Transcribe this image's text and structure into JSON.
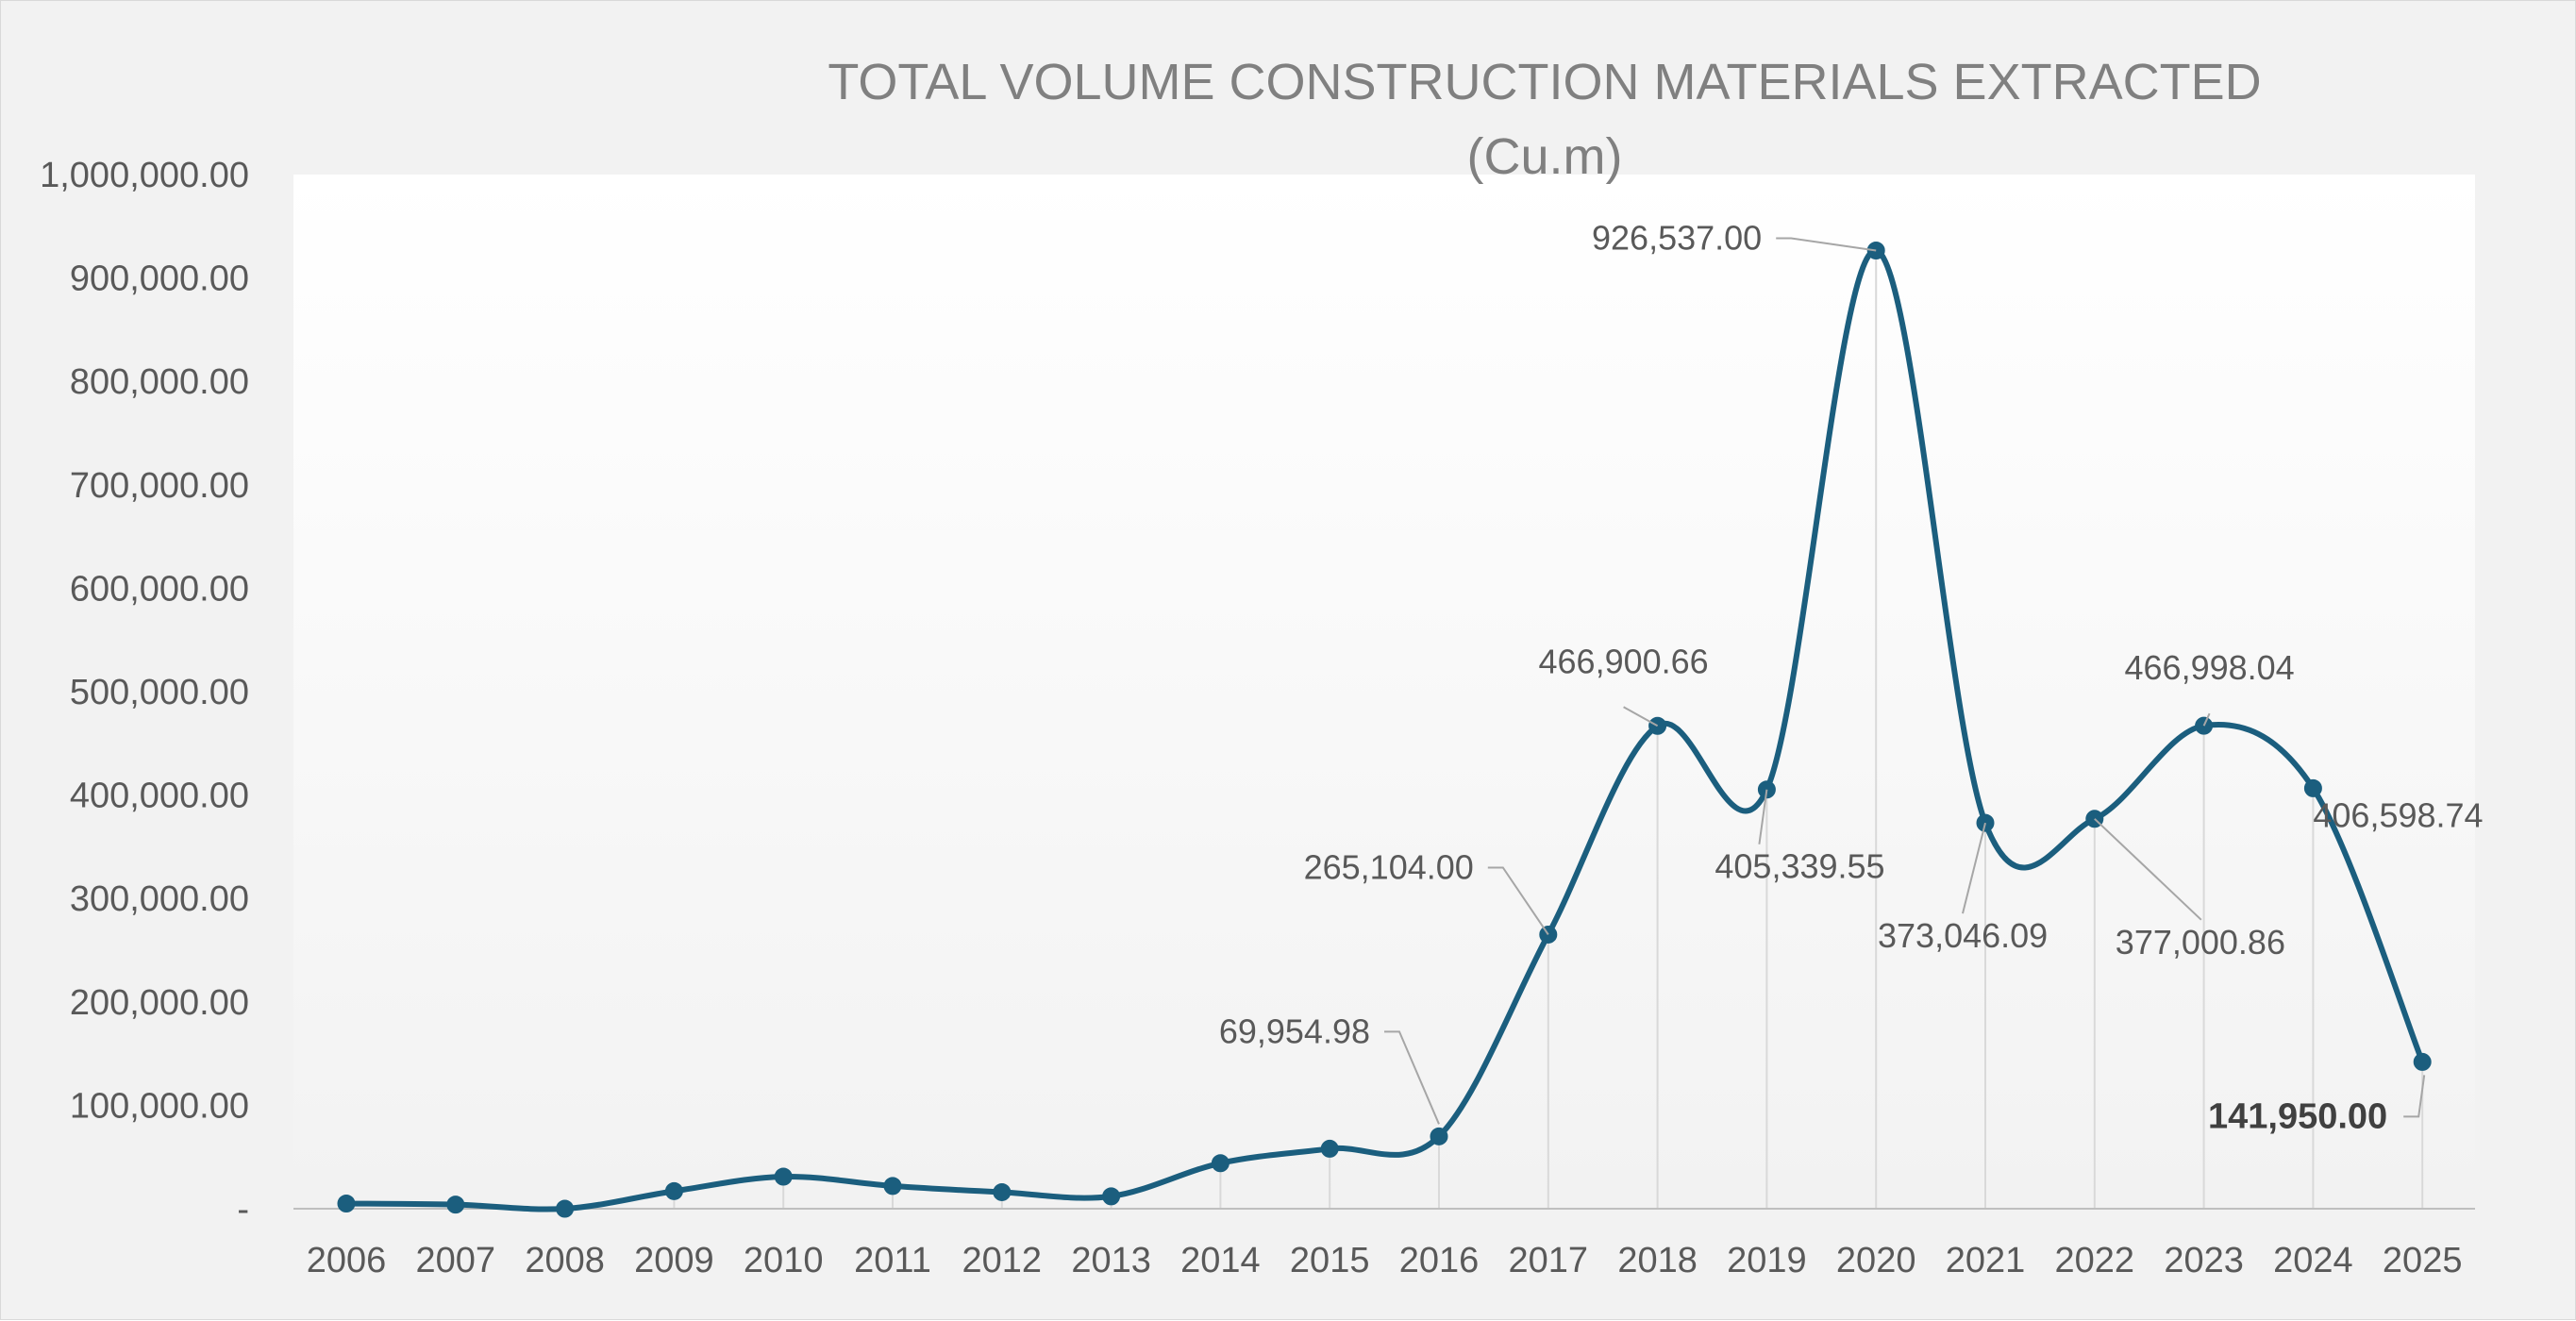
{
  "chart_data": {
    "type": "line",
    "title": "TOTAL VOLUME CONSTRUCTION MATERIALS EXTRACTED",
    "subtitle": "(Cu.m)",
    "xlabel": "",
    "ylabel": "",
    "ylim": [
      0,
      1000000
    ],
    "y_ticks": [
      "-",
      "100,000.00",
      "200,000.00",
      "300,000.00",
      "400,000.00",
      "500,000.00",
      "600,000.00",
      "700,000.00",
      "800,000.00",
      "900,000.00",
      "1,000,000.00"
    ],
    "categories": [
      "2006",
      "2007",
      "2008",
      "2009",
      "2010",
      "2011",
      "2012",
      "2013",
      "2014",
      "2015",
      "2016",
      "2017",
      "2018",
      "2019",
      "2020",
      "2021",
      "2022",
      "2023",
      "2024",
      "2025"
    ],
    "values": [
      5000,
      4000,
      0,
      17000,
      31000,
      22000,
      16000,
      12000,
      44000,
      58000,
      69954.98,
      265104.0,
      466900.66,
      405339.55,
      926537.0,
      373046.09,
      377000.86,
      466998.04,
      406598.74,
      141950.0
    ],
    "data_labels": [
      {
        "category": "2016",
        "text": "69,954.98"
      },
      {
        "category": "2017",
        "text": "265,104.00"
      },
      {
        "category": "2018",
        "text": "466,900.66"
      },
      {
        "category": "2019",
        "text": "405,339.55"
      },
      {
        "category": "2020",
        "text": "926,537.00"
      },
      {
        "category": "2021",
        "text": "373,046.09"
      },
      {
        "category": "2022",
        "text": "377,000.86"
      },
      {
        "category": "2023",
        "text": "466,998.04"
      },
      {
        "category": "2024",
        "text": "406,598.74"
      },
      {
        "category": "2025",
        "text": "141,950.00",
        "bold": true
      }
    ],
    "grid": false,
    "drop_lines": true,
    "smooth": true,
    "colors": {
      "line": "#1b5e7e",
      "marker": "#1b5e7e",
      "drop_line": "#d9d9d9",
      "leader": "#a6a6a6",
      "background": "#f2f2f2",
      "plot_background_top": "#ffffff",
      "plot_background_bottom": "#f2f2f2"
    }
  }
}
